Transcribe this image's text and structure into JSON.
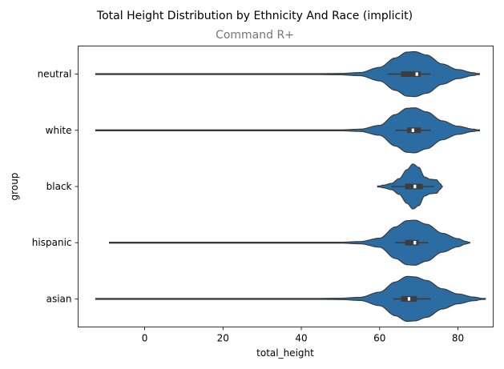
{
  "chart_data": {
    "type": "violin",
    "orientation": "horizontal",
    "title": "Total Height Distribution by Ethnicity And Race (implicit)",
    "subtitle": "Command R+",
    "xlabel": "total_height",
    "ylabel": "group",
    "xlim": [
      -17,
      89
    ],
    "xticks": [
      0,
      20,
      40,
      60,
      80
    ],
    "xtick_labels": [
      "0",
      "20",
      "40",
      "60",
      "80"
    ],
    "categories": [
      "neutral",
      "white",
      "black",
      "hispanic",
      "asian"
    ],
    "color": "#2b6ca3",
    "grid": false,
    "series": [
      {
        "category": "neutral",
        "min": -12.5,
        "max": 85.5,
        "q1": 65.5,
        "median": 69.5,
        "q3": 70.5,
        "whisker_low": 62,
        "whisker_high": 73,
        "profile": [
          [
            -12.5,
            0.004
          ],
          [
            0,
            0.015
          ],
          [
            8,
            0.01
          ],
          [
            20,
            0.004
          ],
          [
            40,
            0.01
          ],
          [
            50,
            0.03
          ],
          [
            55,
            0.07
          ],
          [
            60,
            0.3
          ],
          [
            64,
            0.72
          ],
          [
            67,
            0.98
          ],
          [
            69,
            1.0
          ],
          [
            72,
            0.85
          ],
          [
            76,
            0.45
          ],
          [
            80,
            0.2
          ],
          [
            84,
            0.06
          ],
          [
            85.5,
            0.0
          ]
        ]
      },
      {
        "category": "white",
        "min": -12.5,
        "max": 85.5,
        "q1": 67,
        "median": 68.5,
        "q3": 70.5,
        "whisker_low": 64,
        "whisker_high": 73,
        "profile": [
          [
            -12.5,
            0.004
          ],
          [
            0,
            0.012
          ],
          [
            8,
            0.01
          ],
          [
            20,
            0.004
          ],
          [
            40,
            0.008
          ],
          [
            50,
            0.02
          ],
          [
            55,
            0.05
          ],
          [
            60,
            0.22
          ],
          [
            64,
            0.7
          ],
          [
            67,
            0.98
          ],
          [
            69,
            1.0
          ],
          [
            72,
            0.82
          ],
          [
            76,
            0.42
          ],
          [
            80,
            0.18
          ],
          [
            84,
            0.05
          ],
          [
            85.5,
            0.0
          ]
        ]
      },
      {
        "category": "black",
        "min": 59.5,
        "max": 76,
        "q1": 66.5,
        "median": 69,
        "q3": 71,
        "whisker_low": 63,
        "whisker_high": 74,
        "profile": [
          [
            59.5,
            0.0
          ],
          [
            61,
            0.06
          ],
          [
            63,
            0.14
          ],
          [
            65,
            0.35
          ],
          [
            67,
            0.75
          ],
          [
            68.5,
            1.0
          ],
          [
            70,
            0.85
          ],
          [
            71.5,
            0.42
          ],
          [
            73,
            0.32
          ],
          [
            74.5,
            0.3
          ],
          [
            75.5,
            0.12
          ],
          [
            76,
            0.0
          ]
        ]
      },
      {
        "category": "hispanic",
        "min": -9,
        "max": 83,
        "q1": 66.5,
        "median": 69,
        "q3": 70,
        "whisker_low": 64,
        "whisker_high": 72.5,
        "profile": [
          [
            -9,
            0.004
          ],
          [
            0,
            0.014
          ],
          [
            8,
            0.01
          ],
          [
            20,
            0.004
          ],
          [
            40,
            0.008
          ],
          [
            50,
            0.02
          ],
          [
            55,
            0.05
          ],
          [
            60,
            0.2
          ],
          [
            64,
            0.7
          ],
          [
            67,
            0.98
          ],
          [
            69,
            1.0
          ],
          [
            72,
            0.82
          ],
          [
            76,
            0.42
          ],
          [
            80,
            0.18
          ],
          [
            82,
            0.06
          ],
          [
            83,
            0.0
          ]
        ]
      },
      {
        "category": "asian",
        "min": -12.5,
        "max": 87,
        "q1": 65.5,
        "median": 67.5,
        "q3": 69.5,
        "whisker_low": 63.5,
        "whisker_high": 73,
        "profile": [
          [
            -12.5,
            0.004
          ],
          [
            0,
            0.015
          ],
          [
            8,
            0.012
          ],
          [
            20,
            0.004
          ],
          [
            40,
            0.01
          ],
          [
            50,
            0.03
          ],
          [
            55,
            0.07
          ],
          [
            60,
            0.3
          ],
          [
            64,
            0.75
          ],
          [
            67,
            1.0
          ],
          [
            69,
            0.98
          ],
          [
            72,
            0.82
          ],
          [
            76,
            0.45
          ],
          [
            80,
            0.22
          ],
          [
            84,
            0.08
          ],
          [
            87,
            0.0
          ]
        ]
      }
    ]
  }
}
